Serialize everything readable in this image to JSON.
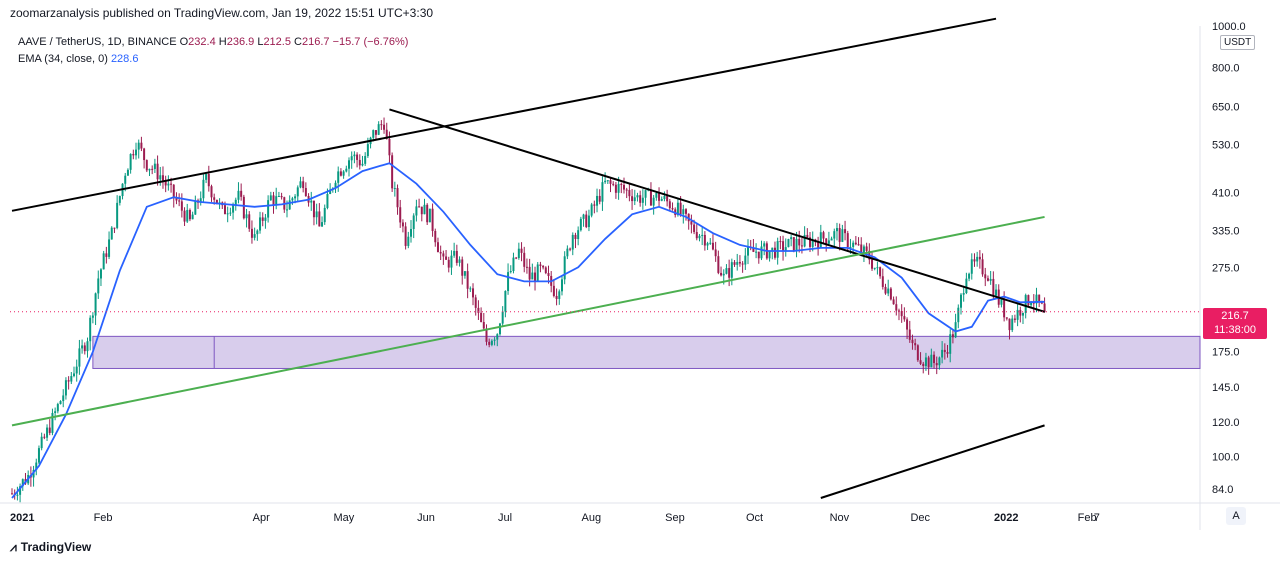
{
  "header": {
    "published": "zoomarzanalysis published on TradingView.com, Jan 19, 2022 15:51 UTC+3:30"
  },
  "legend": {
    "symbol": "AAVE / TetherUS, 1D, BINANCE",
    "o_label": "O",
    "o": "232.4",
    "h_label": "H",
    "h": "236.9",
    "l_label": "L",
    "l": "212.5",
    "c_label": "C",
    "c": "216.7",
    "change": "−15.7 (−6.76%)",
    "ema_label": "EMA (34, close, 0)",
    "ema_value": "228.6"
  },
  "price_tag": {
    "price": "216.7",
    "countdown": "11:38:00"
  },
  "currency": "USDT",
  "footer": {
    "brand": "TradingView",
    "icon": "tradingview-logo-icon"
  },
  "auto_scale_button": "A",
  "colors": {
    "up": "#089981",
    "down": "#9c1c50",
    "ema": "#2962ff",
    "trend": "#000000",
    "support_line": "#4caf50",
    "zone_fill": "#d1c4e9",
    "zone_border": "#7e57c2",
    "price_line": "#e91e63"
  },
  "chart_data": {
    "type": "candlestick",
    "scale": "log",
    "ylim": [
      80,
      1000
    ],
    "y_ticks": [
      {
        "v": 1000,
        "label": "1000.0"
      },
      {
        "v": 800,
        "label": "800.0"
      },
      {
        "v": 650,
        "label": "650.0"
      },
      {
        "v": 530,
        "label": "530.0"
      },
      {
        "v": 410,
        "label": "410.0"
      },
      {
        "v": 335,
        "label": "335.0"
      },
      {
        "v": 275,
        "label": "275.0"
      },
      {
        "v": 175,
        "label": "175.0"
      },
      {
        "v": 145,
        "label": "145.0"
      },
      {
        "v": 120,
        "label": "120.0"
      },
      {
        "v": 100,
        "label": "100.0"
      },
      {
        "v": 84,
        "label": "84.0"
      }
    ],
    "x_ticks": [
      {
        "label": "2021",
        "day": 0
      },
      {
        "label": "Feb",
        "day": 31
      },
      {
        "label": "Apr",
        "day": 90
      },
      {
        "label": "May",
        "day": 120
      },
      {
        "label": "Jun",
        "day": 151
      },
      {
        "label": "Jul",
        "day": 181
      },
      {
        "label": "Aug",
        "day": 212
      },
      {
        "label": "Sep",
        "day": 243
      },
      {
        "label": "Oct",
        "day": 273
      },
      {
        "label": "Nov",
        "day": 304
      },
      {
        "label": "Dec",
        "day": 334
      },
      {
        "label": "2022",
        "day": 365
      },
      {
        "label": "Feb",
        "day": 396
      },
      {
        "label": "7",
        "day": 402
      }
    ],
    "last_day": 383,
    "last_price": 216.7,
    "keypoints": [
      [
        0,
        82
      ],
      [
        6,
        90
      ],
      [
        12,
        110
      ],
      [
        18,
        135
      ],
      [
        24,
        165
      ],
      [
        28,
        190
      ],
      [
        32,
        260
      ],
      [
        37,
        330
      ],
      [
        42,
        460
      ],
      [
        46,
        540
      ],
      [
        50,
        480
      ],
      [
        55,
        450
      ],
      [
        60,
        400
      ],
      [
        66,
        350
      ],
      [
        72,
        440
      ],
      [
        78,
        370
      ],
      [
        84,
        400
      ],
      [
        90,
        320
      ],
      [
        96,
        400
      ],
      [
        102,
        380
      ],
      [
        108,
        440
      ],
      [
        114,
        340
      ],
      [
        120,
        450
      ],
      [
        126,
        500
      ],
      [
        130,
        480
      ],
      [
        134,
        560
      ],
      [
        138,
        600
      ],
      [
        141,
        430
      ],
      [
        146,
        320
      ],
      [
        150,
        390
      ],
      [
        155,
        360
      ],
      [
        160,
        280
      ],
      [
        165,
        290
      ],
      [
        170,
        240
      ],
      [
        176,
        185
      ],
      [
        180,
        195
      ],
      [
        184,
        260
      ],
      [
        188,
        300
      ],
      [
        192,
        260
      ],
      [
        196,
        270
      ],
      [
        202,
        240
      ],
      [
        208,
        330
      ],
      [
        214,
        360
      ],
      [
        220,
        430
      ],
      [
        226,
        420
      ],
      [
        232,
        400
      ],
      [
        240,
        400
      ],
      [
        246,
        380
      ],
      [
        252,
        340
      ],
      [
        258,
        320
      ],
      [
        264,
        260
      ],
      [
        270,
        290
      ],
      [
        276,
        300
      ],
      [
        282,
        300
      ],
      [
        288,
        310
      ],
      [
        294,
        315
      ],
      [
        300,
        320
      ],
      [
        306,
        330
      ],
      [
        312,
        310
      ],
      [
        318,
        290
      ],
      [
        322,
        260
      ],
      [
        326,
        240
      ],
      [
        330,
        210
      ],
      [
        334,
        180
      ],
      [
        338,
        168
      ],
      [
        342,
        165
      ],
      [
        346,
        175
      ],
      [
        350,
        200
      ],
      [
        354,
        270
      ],
      [
        358,
        280
      ],
      [
        362,
        265
      ],
      [
        366,
        230
      ],
      [
        370,
        205
      ],
      [
        374,
        220
      ],
      [
        378,
        235
      ],
      [
        383,
        216.7
      ]
    ],
    "ema": [
      [
        0,
        80
      ],
      [
        10,
        95
      ],
      [
        20,
        125
      ],
      [
        30,
        175
      ],
      [
        40,
        270
      ],
      [
        50,
        380
      ],
      [
        60,
        400
      ],
      [
        70,
        390
      ],
      [
        80,
        385
      ],
      [
        90,
        380
      ],
      [
        100,
        385
      ],
      [
        110,
        395
      ],
      [
        120,
        420
      ],
      [
        130,
        460
      ],
      [
        140,
        480
      ],
      [
        150,
        430
      ],
      [
        160,
        370
      ],
      [
        170,
        310
      ],
      [
        180,
        265
      ],
      [
        190,
        255
      ],
      [
        200,
        255
      ],
      [
        210,
        275
      ],
      [
        220,
        320
      ],
      [
        230,
        365
      ],
      [
        240,
        380
      ],
      [
        250,
        360
      ],
      [
        260,
        330
      ],
      [
        270,
        310
      ],
      [
        280,
        300
      ],
      [
        290,
        300
      ],
      [
        300,
        305
      ],
      [
        310,
        305
      ],
      [
        320,
        290
      ],
      [
        330,
        260
      ],
      [
        340,
        215
      ],
      [
        350,
        195
      ],
      [
        356,
        200
      ],
      [
        362,
        230
      ],
      [
        368,
        235
      ],
      [
        374,
        228
      ],
      [
        383,
        228.6
      ]
    ],
    "trendlines": [
      {
        "name": "upper-channel",
        "color": "#000000",
        "p1": [
          0,
          372
        ],
        "p2": [
          365,
          1040
        ]
      },
      {
        "name": "descending-resistance",
        "color": "#000000",
        "p1": [
          140,
          640
        ],
        "p2": [
          383,
          216.7
        ]
      },
      {
        "name": "ascending-support",
        "color": "#4caf50",
        "p1": [
          0,
          118
        ],
        "p2": [
          383,
          360
        ]
      },
      {
        "name": "lower-channel",
        "color": "#000000",
        "p1": [
          300,
          80
        ],
        "p2": [
          383,
          118
        ]
      }
    ],
    "zone": {
      "low": 160,
      "high": 190,
      "from_day": 30,
      "to_day": 383
    },
    "zone_marker_day": 75
  }
}
